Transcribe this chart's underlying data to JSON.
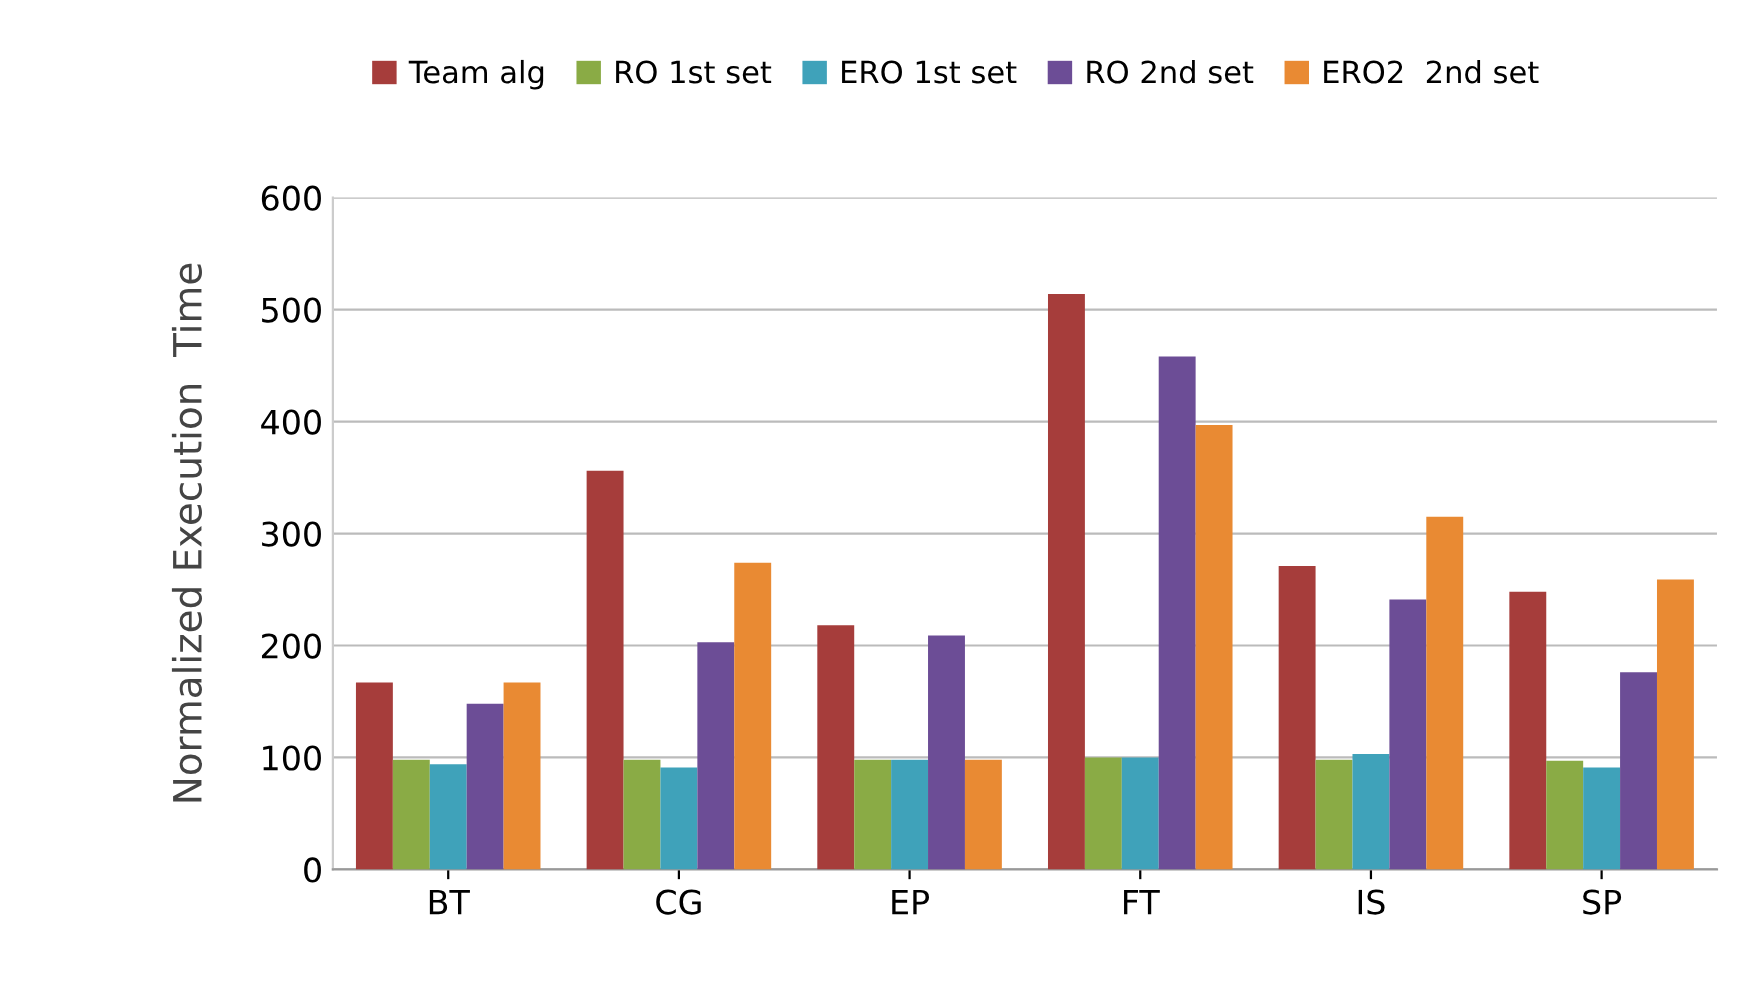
{
  "chart_data": {
    "type": "bar",
    "ylabel": "Normalized Execution  Time",
    "categories": [
      "BT",
      "CG",
      "EP",
      "FT",
      "IS",
      "SP"
    ],
    "series": [
      {
        "name": "Team alg",
        "color": "#a63d3b",
        "values": [
          167,
          356,
          218,
          514,
          271,
          248
        ]
      },
      {
        "name": "RO 1st set",
        "color": "#8aab45",
        "values": [
          98,
          98,
          98,
          100,
          98,
          97
        ]
      },
      {
        "name": "ERO 1st set",
        "color": "#3fa2ba",
        "values": [
          94,
          91,
          98,
          100,
          103,
          91
        ]
      },
      {
        "name": "RO 2nd set",
        "color": "#6c4d96",
        "values": [
          148,
          203,
          209,
          458,
          241,
          176
        ]
      },
      {
        "name": "ERO2  2nd set",
        "color": "#e98a33",
        "values": [
          167,
          274,
          98,
          397,
          315,
          259
        ]
      }
    ],
    "ylim": [
      0,
      600
    ],
    "yticks": [
      0,
      100,
      200,
      300,
      400,
      500,
      600
    ],
    "grid": "y",
    "legend": "top"
  }
}
